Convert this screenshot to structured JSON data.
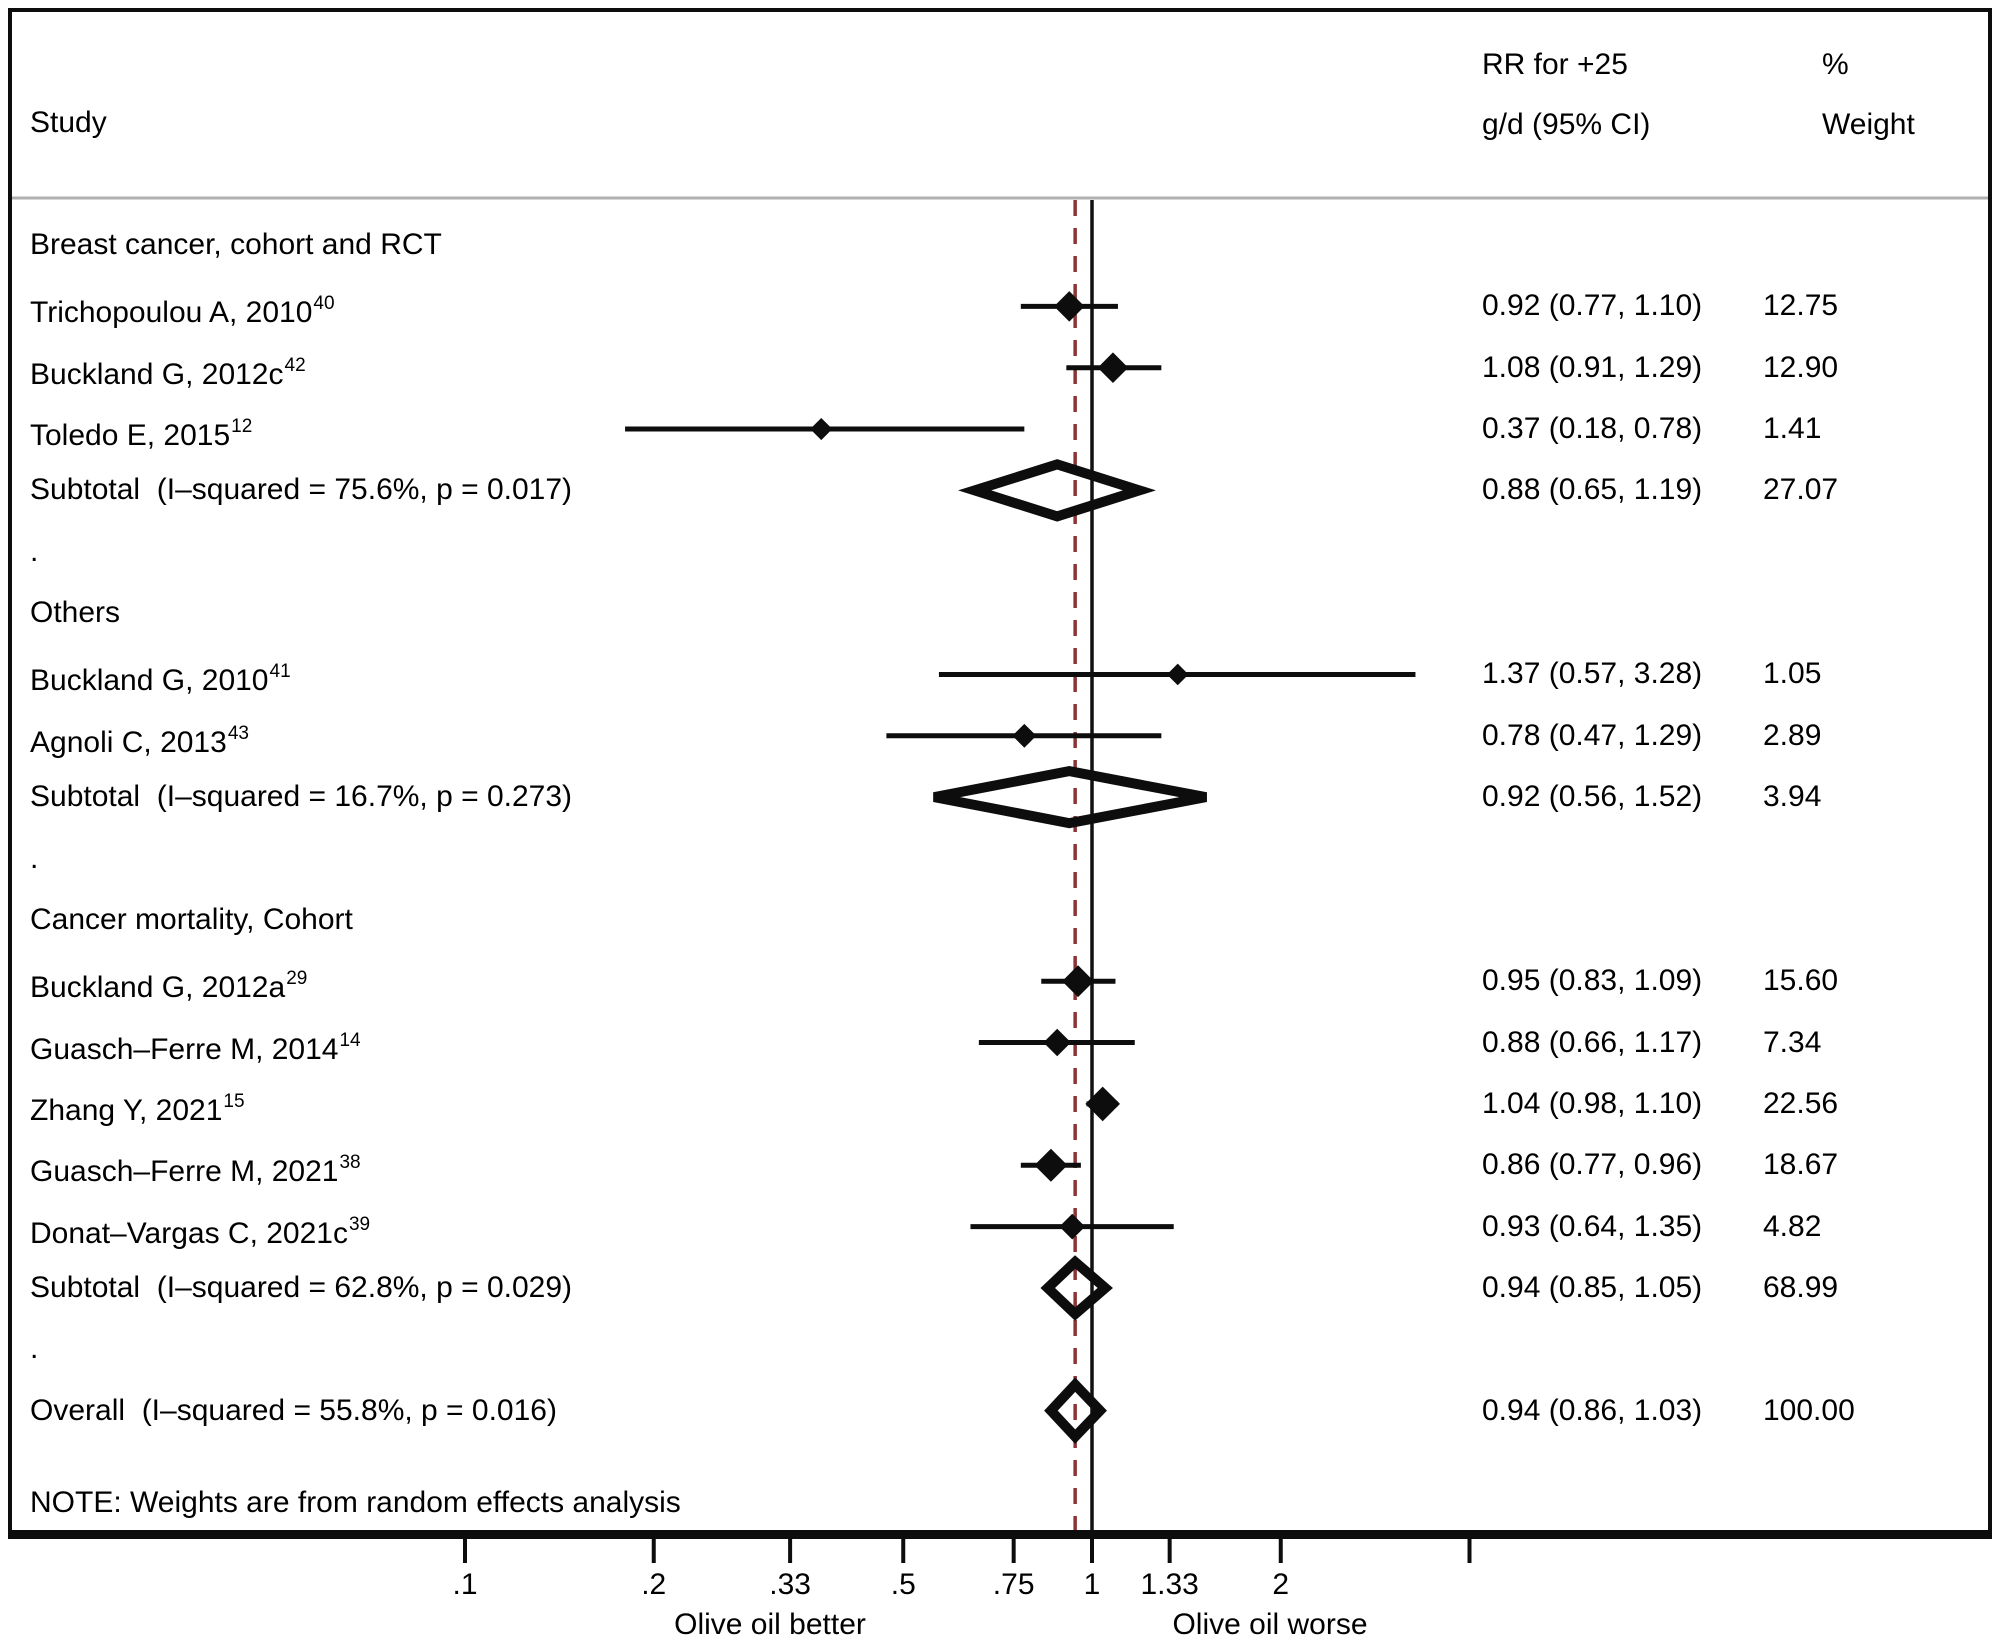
{
  "header": {
    "study_col": "Study",
    "rr_col_line1": "RR for +25",
    "rr_col_line2": "g/d (95% CI)",
    "weight_col_line1": "%",
    "weight_col_line2": "Weight"
  },
  "note": "NOTE: Weights are from random effects analysis",
  "axis": {
    "direction_left": "Olive oil better",
    "direction_right": "Olive oil worse",
    "ticks": [
      {
        "label": ".1",
        "value": 0.1
      },
      {
        "label": ".2",
        "value": 0.2
      },
      {
        "label": ".33",
        "value": 0.33
      },
      {
        "label": ".5",
        "value": 0.5
      },
      {
        "label": ".75",
        "value": 0.75
      },
      {
        "label": "1",
        "value": 1
      },
      {
        "label": "1.33",
        "value": 1.33
      },
      {
        "label": "2",
        "value": 2
      },
      {
        "label": "",
        "value": 4
      }
    ]
  },
  "colors": {
    "ink": "#0d0d0d",
    "null_line": "#111111",
    "overall_dashed": "#8a3436",
    "separator": "#b0b0b0"
  },
  "chart_data": {
    "type": "forest",
    "x_scale": "log10",
    "x_axis_ticks": [
      0.1,
      0.2,
      0.33,
      0.5,
      0.75,
      1,
      1.33,
      2,
      4
    ],
    "null_value": 1,
    "overall_reference_value": 0.94,
    "effect_measure": "RR for +25 g/d (95% CI)",
    "rows": [
      {
        "kind": "group",
        "label": "Breast cancer, cohort and RCT"
      },
      {
        "kind": "study",
        "label": "Trichopoulou A, 2010",
        "sup": "40",
        "rr": 0.92,
        "ci_low": 0.77,
        "ci_high": 1.1,
        "rr_text": "0.92 (0.77, 1.10)",
        "weight": 12.75,
        "weight_text": "12.75"
      },
      {
        "kind": "study",
        "label": "Buckland G, 2012c",
        "sup": "42",
        "rr": 1.08,
        "ci_low": 0.91,
        "ci_high": 1.29,
        "rr_text": "1.08 (0.91, 1.29)",
        "weight": 12.9,
        "weight_text": "12.90"
      },
      {
        "kind": "study",
        "label": "Toledo E, 2015",
        "sup": "12",
        "rr": 0.37,
        "ci_low": 0.18,
        "ci_high": 0.78,
        "rr_text": "0.37 (0.18, 0.78)",
        "weight": 1.41,
        "weight_text": "1.41"
      },
      {
        "kind": "subtotal",
        "label": "Subtotal  (I–squared = 75.6%, p = 0.017)",
        "rr": 0.88,
        "ci_low": 0.65,
        "ci_high": 1.19,
        "rr_text": "0.88 (0.65, 1.19)",
        "weight": 27.07,
        "weight_text": "27.07"
      },
      {
        "kind": "gap",
        "label": "."
      },
      {
        "kind": "group",
        "label": "Others"
      },
      {
        "kind": "study",
        "label": "Buckland G, 2010",
        "sup": "41",
        "rr": 1.37,
        "ci_low": 0.57,
        "ci_high": 3.28,
        "rr_text": "1.37 (0.57, 3.28)",
        "weight": 1.05,
        "weight_text": "1.05"
      },
      {
        "kind": "study",
        "label": "Agnoli C, 2013",
        "sup": "43",
        "rr": 0.78,
        "ci_low": 0.47,
        "ci_high": 1.29,
        "rr_text": "0.78 (0.47, 1.29)",
        "weight": 2.89,
        "weight_text": "2.89"
      },
      {
        "kind": "subtotal",
        "label": "Subtotal  (I–squared = 16.7%, p = 0.273)",
        "rr": 0.92,
        "ci_low": 0.56,
        "ci_high": 1.52,
        "rr_text": "0.92 (0.56, 1.52)",
        "weight": 3.94,
        "weight_text": "3.94"
      },
      {
        "kind": "gap",
        "label": "."
      },
      {
        "kind": "group",
        "label": "Cancer mortality, Cohort"
      },
      {
        "kind": "study",
        "label": "Buckland G, 2012a",
        "sup": "29",
        "rr": 0.95,
        "ci_low": 0.83,
        "ci_high": 1.09,
        "rr_text": "0.95 (0.83, 1.09)",
        "weight": 15.6,
        "weight_text": "15.60"
      },
      {
        "kind": "study",
        "label": "Guasch–Ferre M, 2014",
        "sup": "14",
        "rr": 0.88,
        "ci_low": 0.66,
        "ci_high": 1.17,
        "rr_text": "0.88 (0.66, 1.17)",
        "weight": 7.34,
        "weight_text": "7.34"
      },
      {
        "kind": "study",
        "label": "Zhang Y, 2021",
        "sup": "15",
        "rr": 1.04,
        "ci_low": 0.98,
        "ci_high": 1.1,
        "rr_text": "1.04 (0.98, 1.10)",
        "weight": 22.56,
        "weight_text": "22.56"
      },
      {
        "kind": "study",
        "label": "Guasch–Ferre M, 2021",
        "sup": "38",
        "rr": 0.86,
        "ci_low": 0.77,
        "ci_high": 0.96,
        "rr_text": "0.86 (0.77, 0.96)",
        "weight": 18.67,
        "weight_text": "18.67"
      },
      {
        "kind": "study",
        "label": "Donat–Vargas C, 2021c",
        "sup": "39",
        "rr": 0.93,
        "ci_low": 0.64,
        "ci_high": 1.35,
        "rr_text": "0.93 (0.64, 1.35)",
        "weight": 4.82,
        "weight_text": "4.82"
      },
      {
        "kind": "subtotal",
        "label": "Subtotal  (I–squared = 62.8%, p = 0.029)",
        "rr": 0.94,
        "ci_low": 0.85,
        "ci_high": 1.05,
        "rr_text": "0.94 (0.85, 1.05)",
        "weight": 68.99,
        "weight_text": "68.99"
      },
      {
        "kind": "gap",
        "label": "."
      },
      {
        "kind": "overall",
        "label": "Overall  (I–squared = 55.8%, p = 0.016)",
        "rr": 0.94,
        "ci_low": 0.86,
        "ci_high": 1.03,
        "rr_text": "0.94 (0.86, 1.03)",
        "weight": 100.0,
        "weight_text": "100.00"
      }
    ]
  }
}
